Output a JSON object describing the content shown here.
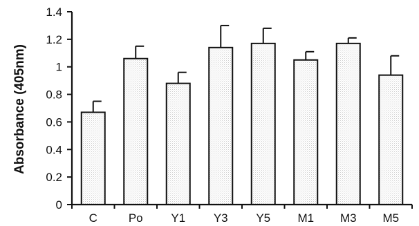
{
  "chart_data": {
    "type": "bar",
    "title": "",
    "xlabel": "",
    "ylabel": "Absorbance (405nm)",
    "ylim": [
      0,
      1.4
    ],
    "yticks": [
      "0",
      "0.2",
      "0.4",
      "0.6",
      "0.8",
      "1",
      "1.2",
      "1.4"
    ],
    "ytick_values": [
      0,
      0.2,
      0.4,
      0.6,
      0.8,
      1.0,
      1.2,
      1.4
    ],
    "categories": [
      "C",
      "Po",
      "Y1",
      "Y3",
      "Y5",
      "M1",
      "M3",
      "M5"
    ],
    "values": [
      0.67,
      1.06,
      0.88,
      1.14,
      1.17,
      1.05,
      1.17,
      0.94
    ],
    "errors": [
      0.08,
      0.09,
      0.08,
      0.16,
      0.11,
      0.06,
      0.04,
      0.14
    ],
    "grid": false,
    "bar_fill": "#f2f2f2",
    "bar_edge": "#111111"
  }
}
